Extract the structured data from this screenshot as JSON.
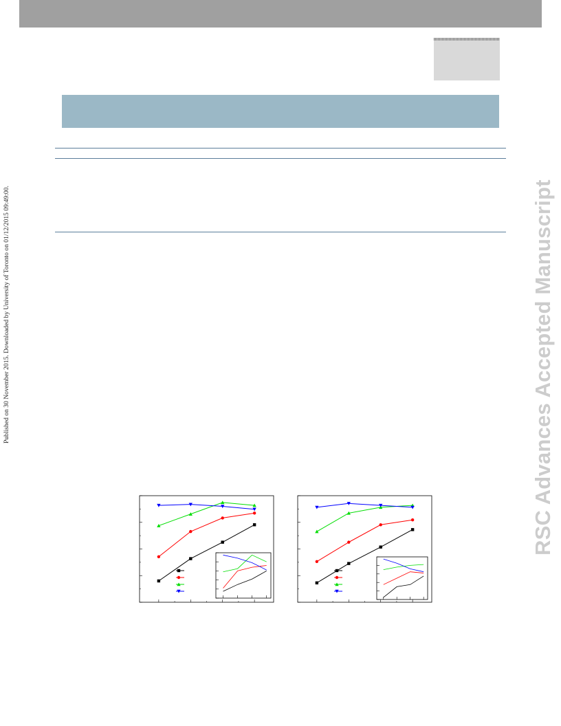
{
  "side_note": "Published on 30 November 2015. Downloaded by University of Toronto on 01/12/2015 09:49:00.",
  "watermark": "RSC Advances Accepted Manuscript",
  "colors": {
    "series": [
      "#000000",
      "#ff0000",
      "#00dd00",
      "#0000ff"
    ],
    "markers": [
      "square",
      "circle",
      "triangle-up",
      "triangle-down"
    ]
  },
  "chart_data": [
    {
      "type": "line",
      "title": "",
      "xlabel": "",
      "ylabel": "",
      "x": [
        1,
        2,
        3,
        4
      ],
      "xlim": [
        0.4,
        4.6
      ],
      "ylim": [
        0,
        1.1
      ],
      "series": [
        {
          "values": [
            0.22,
            0.45,
            0.62,
            0.8
          ]
        },
        {
          "values": [
            0.47,
            0.73,
            0.87,
            0.92
          ]
        },
        {
          "values": [
            0.79,
            0.91,
            1.03,
            1.0
          ]
        },
        {
          "values": [
            1.0,
            1.01,
            0.99,
            0.96
          ]
        }
      ],
      "legend": "lower-left",
      "inset": {
        "x": [
          1,
          2,
          3,
          4
        ],
        "ylim": [
          0,
          1
        ],
        "series": [
          {
            "values": [
              0.15,
              0.3,
              0.42,
              0.6
            ]
          },
          {
            "values": [
              0.22,
              0.6,
              0.68,
              0.72
            ]
          },
          {
            "values": [
              0.58,
              0.65,
              0.95,
              0.8
            ]
          },
          {
            "values": [
              0.95,
              0.88,
              0.78,
              0.62
            ]
          }
        ]
      }
    },
    {
      "type": "line",
      "title": "",
      "xlabel": "",
      "ylabel": "",
      "x": [
        1,
        2,
        3,
        4
      ],
      "xlim": [
        0.4,
        4.6
      ],
      "ylim": [
        0,
        1.1
      ],
      "series": [
        {
          "values": [
            0.2,
            0.4,
            0.57,
            0.75
          ]
        },
        {
          "values": [
            0.42,
            0.62,
            0.8,
            0.85
          ]
        },
        {
          "values": [
            0.73,
            0.92,
            0.98,
            1.0
          ]
        },
        {
          "values": [
            0.98,
            1.02,
            1.0,
            0.98
          ]
        }
      ],
      "legend": "lower-left",
      "inset": {
        "x": [
          1,
          2,
          3,
          4
        ],
        "ylim": [
          0,
          1
        ],
        "series": [
          {
            "values": [
              0.05,
              0.3,
              0.35,
              0.55
            ]
          },
          {
            "values": [
              0.35,
              0.5,
              0.65,
              0.62
            ]
          },
          {
            "values": [
              0.7,
              0.76,
              0.8,
              0.82
            ]
          },
          {
            "values": [
              0.95,
              0.85,
              0.72,
              0.65
            ]
          }
        ]
      }
    }
  ]
}
